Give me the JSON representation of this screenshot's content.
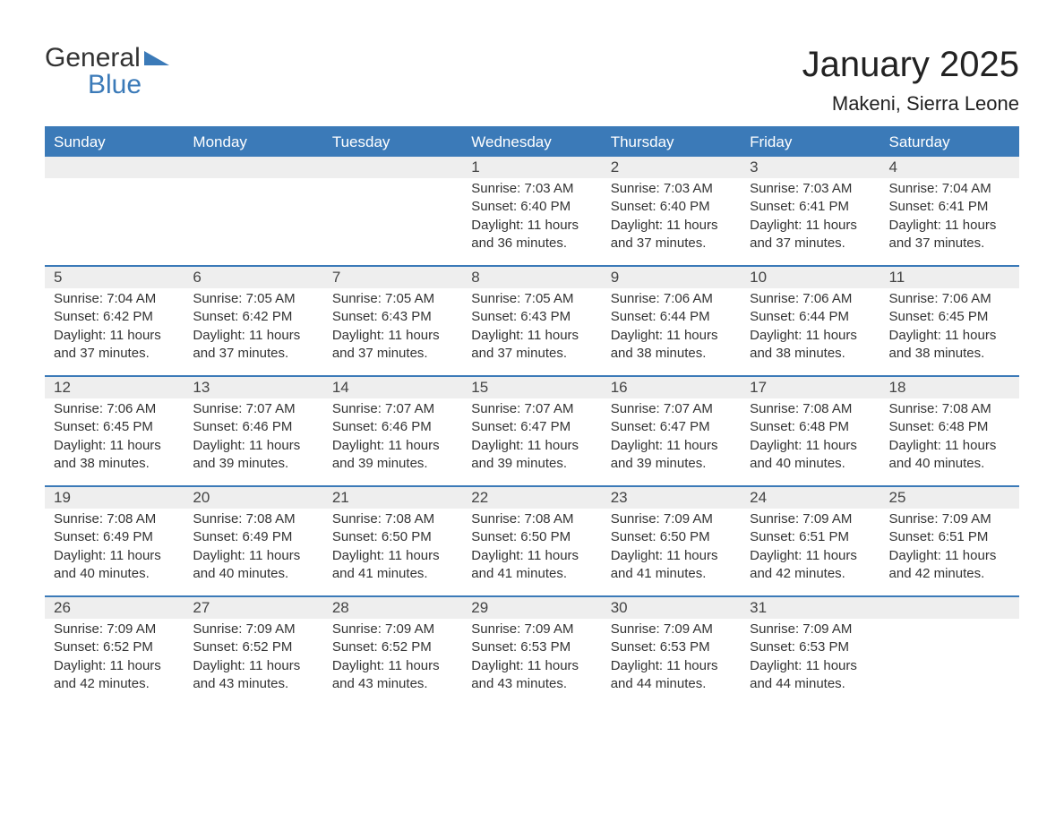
{
  "logo": {
    "text1": "General",
    "text2": "Blue"
  },
  "title": "January 2025",
  "location": "Makeni, Sierra Leone",
  "colors": {
    "brand_blue": "#3b7ab8",
    "header_text": "#ffffff",
    "daynum_bg": "#eeeeee",
    "text": "#333333",
    "page_bg": "#ffffff"
  },
  "fonts": {
    "family": "Arial",
    "title_size": 40,
    "location_size": 22,
    "dow_size": 17,
    "body_size": 15
  },
  "days_of_week": [
    "Sunday",
    "Monday",
    "Tuesday",
    "Wednesday",
    "Thursday",
    "Friday",
    "Saturday"
  ],
  "labels": {
    "sunrise": "Sunrise: ",
    "sunset": "Sunset: ",
    "daylight_prefix": "Daylight: "
  },
  "weeks": [
    [
      {
        "num": "",
        "sunrise": "",
        "sunset": "",
        "daylight": ""
      },
      {
        "num": "",
        "sunrise": "",
        "sunset": "",
        "daylight": ""
      },
      {
        "num": "",
        "sunrise": "",
        "sunset": "",
        "daylight": ""
      },
      {
        "num": "1",
        "sunrise": "7:03 AM",
        "sunset": "6:40 PM",
        "daylight": "11 hours and 36 minutes."
      },
      {
        "num": "2",
        "sunrise": "7:03 AM",
        "sunset": "6:40 PM",
        "daylight": "11 hours and 37 minutes."
      },
      {
        "num": "3",
        "sunrise": "7:03 AM",
        "sunset": "6:41 PM",
        "daylight": "11 hours and 37 minutes."
      },
      {
        "num": "4",
        "sunrise": "7:04 AM",
        "sunset": "6:41 PM",
        "daylight": "11 hours and 37 minutes."
      }
    ],
    [
      {
        "num": "5",
        "sunrise": "7:04 AM",
        "sunset": "6:42 PM",
        "daylight": "11 hours and 37 minutes."
      },
      {
        "num": "6",
        "sunrise": "7:05 AM",
        "sunset": "6:42 PM",
        "daylight": "11 hours and 37 minutes."
      },
      {
        "num": "7",
        "sunrise": "7:05 AM",
        "sunset": "6:43 PM",
        "daylight": "11 hours and 37 minutes."
      },
      {
        "num": "8",
        "sunrise": "7:05 AM",
        "sunset": "6:43 PM",
        "daylight": "11 hours and 37 minutes."
      },
      {
        "num": "9",
        "sunrise": "7:06 AM",
        "sunset": "6:44 PM",
        "daylight": "11 hours and 38 minutes."
      },
      {
        "num": "10",
        "sunrise": "7:06 AM",
        "sunset": "6:44 PM",
        "daylight": "11 hours and 38 minutes."
      },
      {
        "num": "11",
        "sunrise": "7:06 AM",
        "sunset": "6:45 PM",
        "daylight": "11 hours and 38 minutes."
      }
    ],
    [
      {
        "num": "12",
        "sunrise": "7:06 AM",
        "sunset": "6:45 PM",
        "daylight": "11 hours and 38 minutes."
      },
      {
        "num": "13",
        "sunrise": "7:07 AM",
        "sunset": "6:46 PM",
        "daylight": "11 hours and 39 minutes."
      },
      {
        "num": "14",
        "sunrise": "7:07 AM",
        "sunset": "6:46 PM",
        "daylight": "11 hours and 39 minutes."
      },
      {
        "num": "15",
        "sunrise": "7:07 AM",
        "sunset": "6:47 PM",
        "daylight": "11 hours and 39 minutes."
      },
      {
        "num": "16",
        "sunrise": "7:07 AM",
        "sunset": "6:47 PM",
        "daylight": "11 hours and 39 minutes."
      },
      {
        "num": "17",
        "sunrise": "7:08 AM",
        "sunset": "6:48 PM",
        "daylight": "11 hours and 40 minutes."
      },
      {
        "num": "18",
        "sunrise": "7:08 AM",
        "sunset": "6:48 PM",
        "daylight": "11 hours and 40 minutes."
      }
    ],
    [
      {
        "num": "19",
        "sunrise": "7:08 AM",
        "sunset": "6:49 PM",
        "daylight": "11 hours and 40 minutes."
      },
      {
        "num": "20",
        "sunrise": "7:08 AM",
        "sunset": "6:49 PM",
        "daylight": "11 hours and 40 minutes."
      },
      {
        "num": "21",
        "sunrise": "7:08 AM",
        "sunset": "6:50 PM",
        "daylight": "11 hours and 41 minutes."
      },
      {
        "num": "22",
        "sunrise": "7:08 AM",
        "sunset": "6:50 PM",
        "daylight": "11 hours and 41 minutes."
      },
      {
        "num": "23",
        "sunrise": "7:09 AM",
        "sunset": "6:50 PM",
        "daylight": "11 hours and 41 minutes."
      },
      {
        "num": "24",
        "sunrise": "7:09 AM",
        "sunset": "6:51 PM",
        "daylight": "11 hours and 42 minutes."
      },
      {
        "num": "25",
        "sunrise": "7:09 AM",
        "sunset": "6:51 PM",
        "daylight": "11 hours and 42 minutes."
      }
    ],
    [
      {
        "num": "26",
        "sunrise": "7:09 AM",
        "sunset": "6:52 PM",
        "daylight": "11 hours and 42 minutes."
      },
      {
        "num": "27",
        "sunrise": "7:09 AM",
        "sunset": "6:52 PM",
        "daylight": "11 hours and 43 minutes."
      },
      {
        "num": "28",
        "sunrise": "7:09 AM",
        "sunset": "6:52 PM",
        "daylight": "11 hours and 43 minutes."
      },
      {
        "num": "29",
        "sunrise": "7:09 AM",
        "sunset": "6:53 PM",
        "daylight": "11 hours and 43 minutes."
      },
      {
        "num": "30",
        "sunrise": "7:09 AM",
        "sunset": "6:53 PM",
        "daylight": "11 hours and 44 minutes."
      },
      {
        "num": "31",
        "sunrise": "7:09 AM",
        "sunset": "6:53 PM",
        "daylight": "11 hours and 44 minutes."
      },
      {
        "num": "",
        "sunrise": "",
        "sunset": "",
        "daylight": ""
      }
    ]
  ]
}
